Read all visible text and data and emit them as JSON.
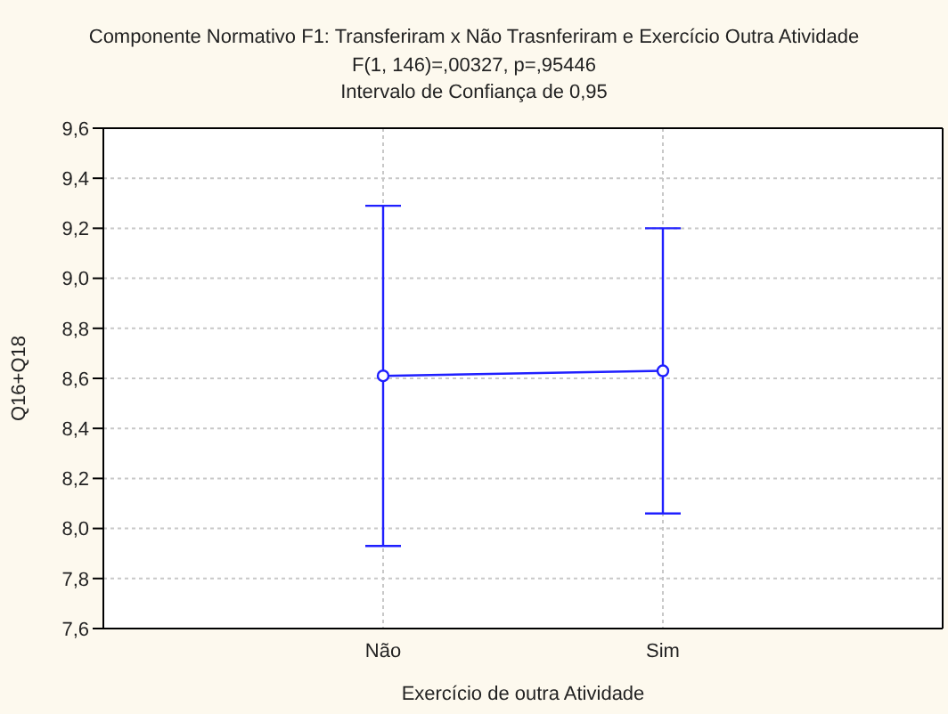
{
  "chart_data": {
    "type": "line",
    "title": "Componente Normativo F1: Transferiram x Não Trasnferiram e Exercício Outra Atividade",
    "subtitle": "F(1, 146)=,00327, p=,95446",
    "annotations": [
      "Intervalo de Confiança de 0,95"
    ],
    "xlabel": "Exercício de outra Atividade",
    "ylabel": "Q16+Q18",
    "categories": [
      "Não",
      "Sim"
    ],
    "series": [
      {
        "color": "#1f1fff",
        "values": [
          8.61,
          8.63
        ],
        "errors": [
          0.68,
          0.57
        ]
      }
    ],
    "ylim": [
      7.6,
      9.6
    ],
    "yticks": [
      {
        "value": 7.6,
        "label": "7,6"
      },
      {
        "value": 7.8,
        "label": "7,8"
      },
      {
        "value": 8.0,
        "label": "8,0"
      },
      {
        "value": 8.2,
        "label": "8,2"
      },
      {
        "value": 8.4,
        "label": "8,4"
      },
      {
        "value": 8.6,
        "label": "8,6"
      },
      {
        "value": 8.8,
        "label": "8,8"
      },
      {
        "value": 9.0,
        "label": "9,0"
      },
      {
        "value": 9.2,
        "label": "9,2"
      },
      {
        "value": 9.4,
        "label": "9,4"
      },
      {
        "value": 9.6,
        "label": "9,6"
      }
    ],
    "grid": true,
    "marker": "circle",
    "line_style": "solid"
  }
}
